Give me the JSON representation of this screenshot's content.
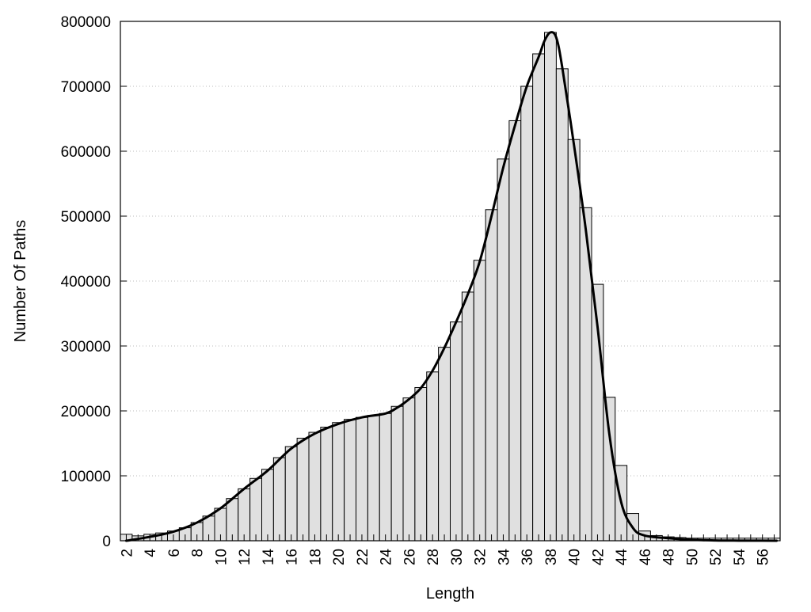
{
  "chart_data": {
    "type": "bar",
    "title": "",
    "xlabel": "Length",
    "ylabel": "Number Of Paths",
    "ylim": [
      0,
      800000
    ],
    "y_ticks": [
      0,
      100000,
      200000,
      300000,
      400000,
      500000,
      600000,
      700000,
      800000
    ],
    "y_tick_labels": [
      "0",
      "100000",
      "200000",
      "300000",
      "400000",
      "500000",
      "600000",
      "700000",
      "800000"
    ],
    "x_ticks": [
      2,
      4,
      6,
      8,
      10,
      12,
      14,
      16,
      18,
      20,
      22,
      24,
      26,
      28,
      30,
      32,
      34,
      36,
      38,
      40,
      42,
      44,
      46,
      48,
      50,
      52,
      54,
      56
    ],
    "x_tick_labels": [
      "2",
      "4",
      "6",
      "8",
      "10",
      "12",
      "14",
      "16",
      "18",
      "20",
      "22",
      "24",
      "26",
      "28",
      "30",
      "32",
      "34",
      "36",
      "38",
      "40",
      "42",
      "44",
      "46",
      "48",
      "50",
      "52",
      "54",
      "56"
    ],
    "grid": "horizontal dotted",
    "bar_color": "#e0e0e0",
    "edge_color": "#000000",
    "line_color": "#000000",
    "categories": [
      2,
      3,
      4,
      5,
      6,
      7,
      8,
      9,
      10,
      11,
      12,
      13,
      14,
      15,
      16,
      17,
      18,
      19,
      20,
      21,
      22,
      23,
      24,
      25,
      26,
      27,
      28,
      29,
      30,
      31,
      32,
      33,
      34,
      35,
      36,
      37,
      38,
      39,
      40,
      41,
      42,
      43,
      44,
      45,
      46,
      47,
      48,
      49,
      50,
      51,
      52,
      53,
      54,
      55,
      56,
      57
    ],
    "values": [
      10000,
      7500,
      10000,
      12000,
      15000,
      20000,
      28000,
      38000,
      50000,
      65000,
      80000,
      96000,
      110000,
      128000,
      145000,
      158000,
      167000,
      175000,
      182000,
      187000,
      190000,
      193000,
      196000,
      207000,
      220000,
      236000,
      260000,
      298000,
      337000,
      383000,
      432000,
      510000,
      588000,
      647000,
      700000,
      750000,
      783000,
      727000,
      618000,
      513000,
      395000,
      221000,
      116000,
      42000,
      15000,
      8000,
      6000,
      5000,
      4000,
      4000,
      4000,
      4000,
      4000,
      4000,
      4000,
      4000
    ],
    "curve": {
      "x": [
        2,
        4,
        6,
        8,
        10,
        12,
        14,
        16,
        18,
        20,
        22,
        24,
        25,
        26,
        27,
        28,
        29,
        30,
        31,
        32,
        33,
        34,
        35,
        36,
        37,
        37.5,
        38,
        38.5,
        39,
        40,
        41,
        42,
        43,
        44,
        45,
        46,
        48,
        50,
        52,
        54,
        56,
        57.2
      ],
      "y": [
        0,
        6000,
        14000,
        28000,
        50000,
        80000,
        108000,
        142000,
        165000,
        180000,
        190000,
        196000,
        205000,
        218000,
        235000,
        262000,
        297000,
        337000,
        380000,
        430000,
        500000,
        575000,
        640000,
        700000,
        745000,
        770000,
        783000,
        775000,
        730000,
        610000,
        480000,
        330000,
        165000,
        60000,
        20000,
        8000,
        4000,
        1500,
        500,
        200,
        100,
        0
      ]
    }
  }
}
